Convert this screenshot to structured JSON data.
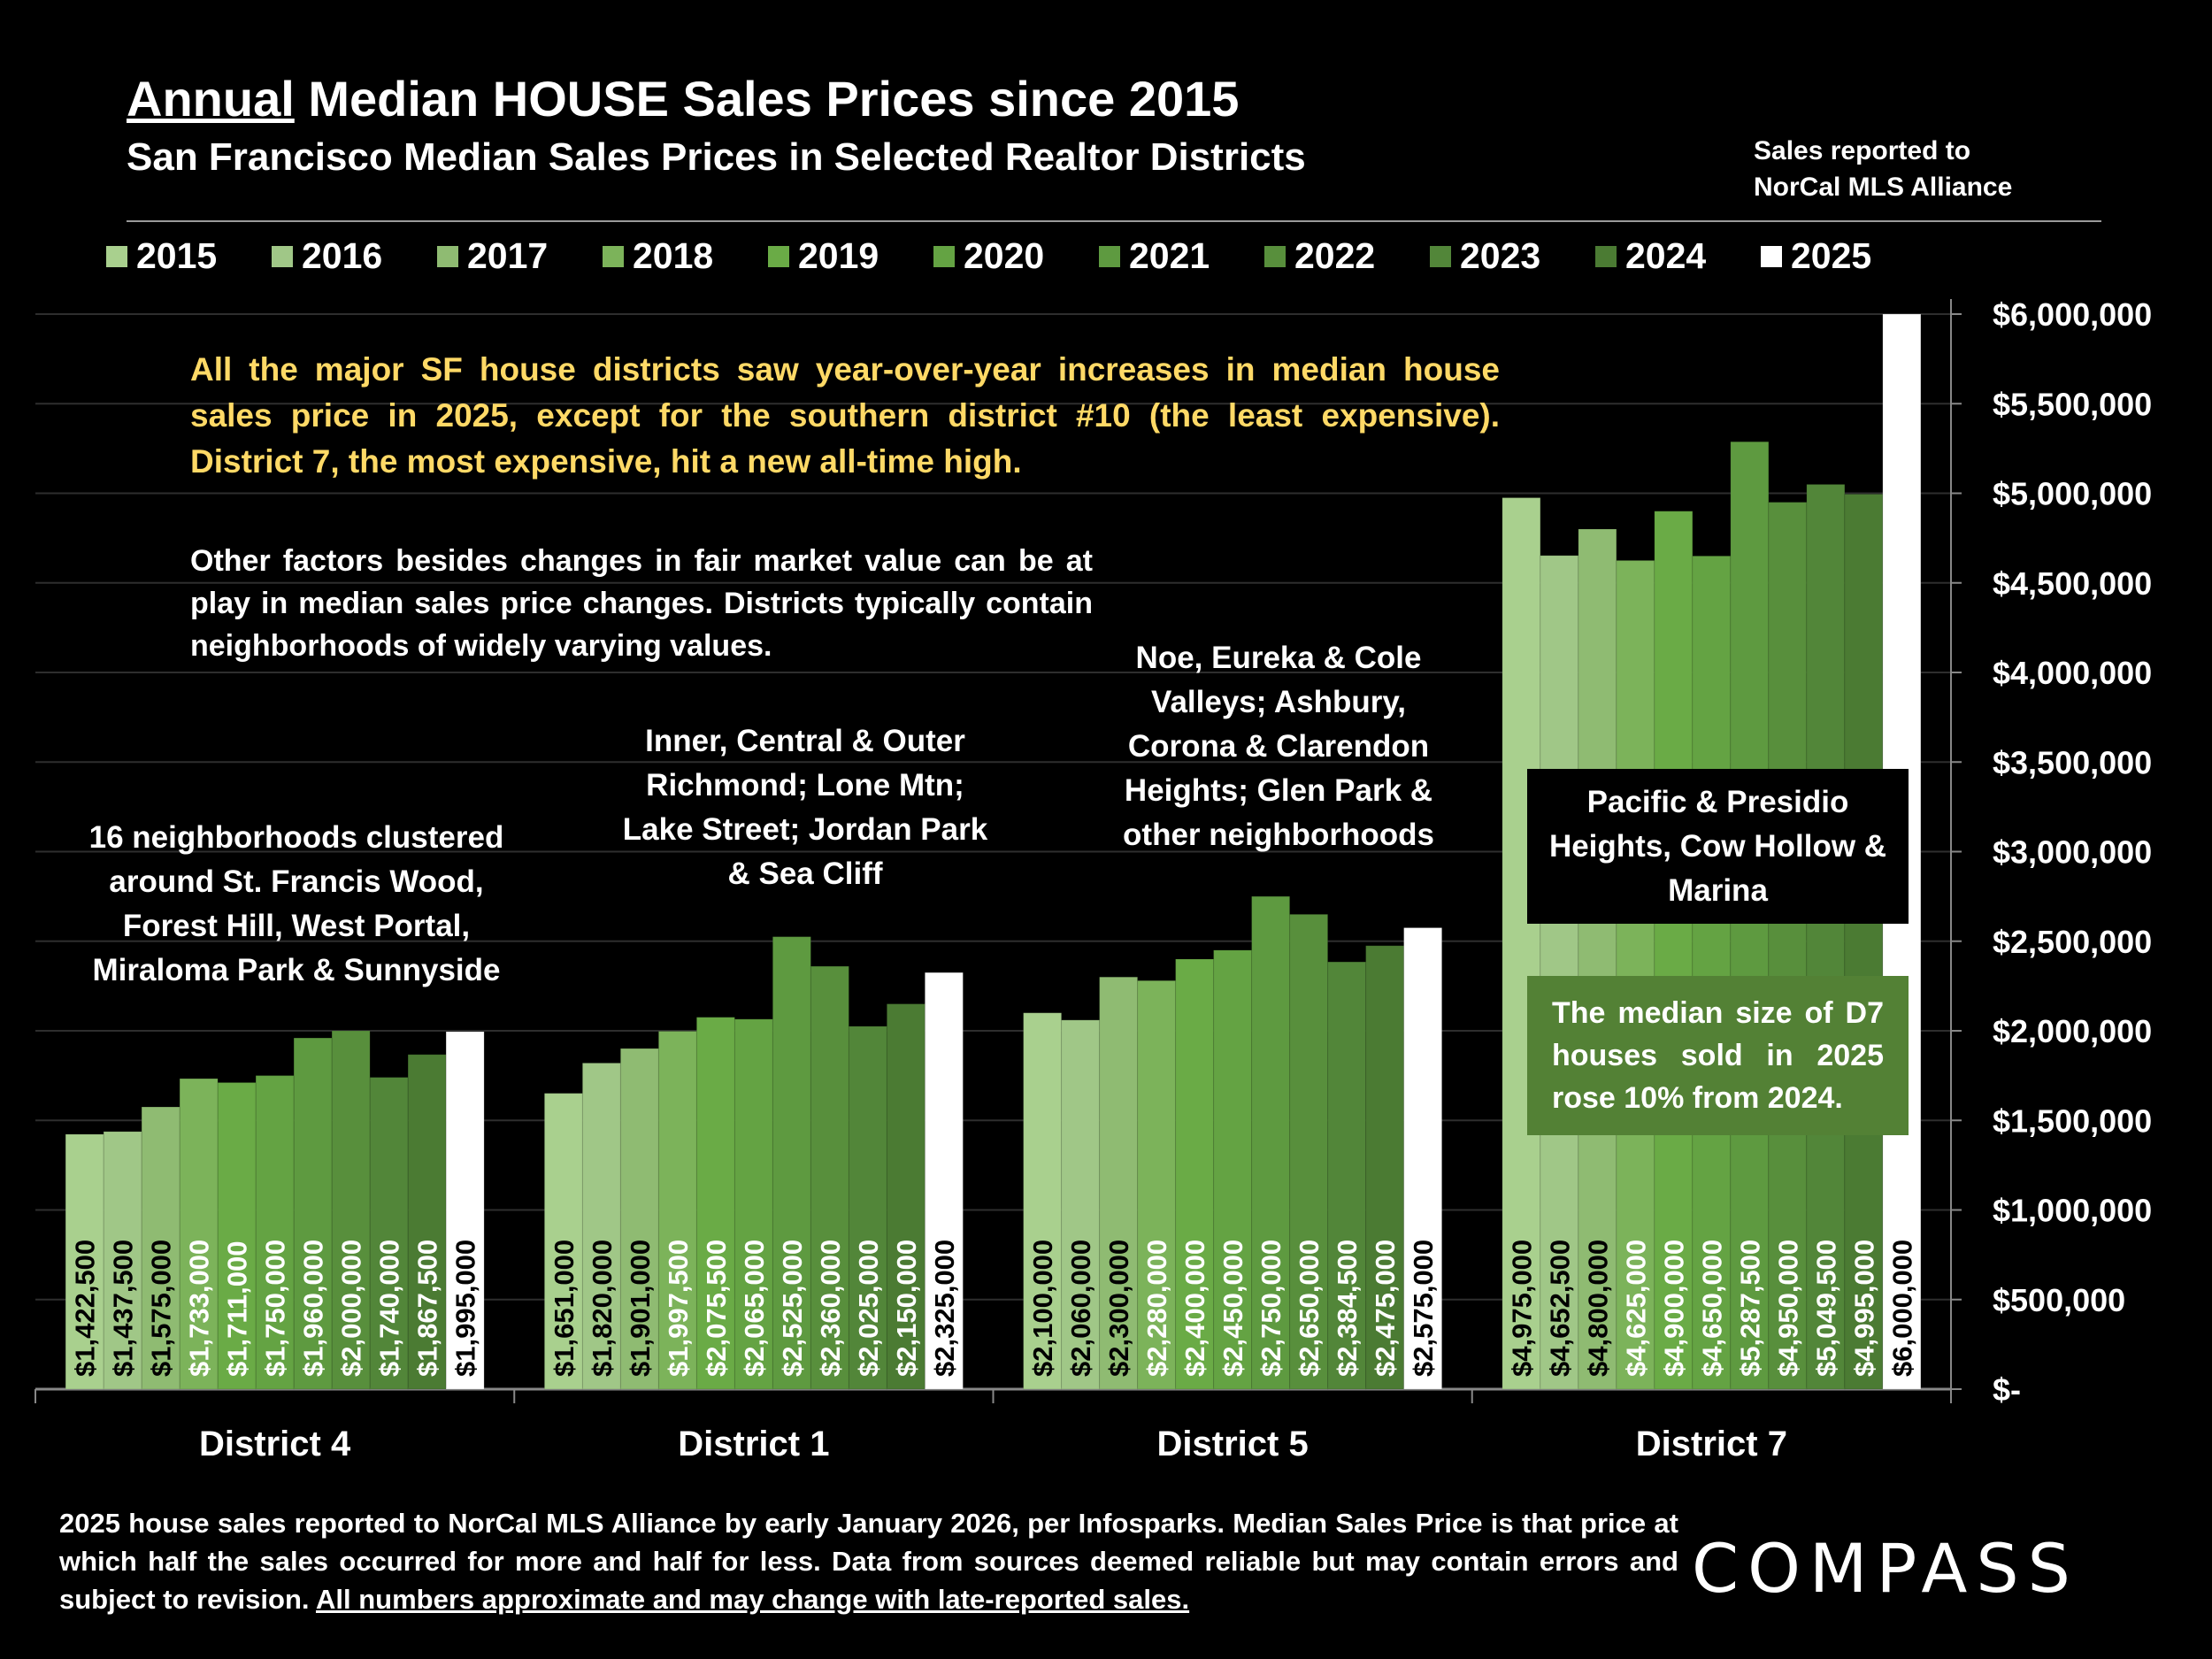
{
  "header": {
    "title_underlined": "Annual",
    "title_rest": " Median HOUSE Sales Prices since 2015",
    "subtitle": "San Francisco Median Sales Prices in Selected Realtor Districts",
    "source_note_line1": "Sales reported to",
    "source_note_line2": "NorCal MLS Alliance"
  },
  "annotations": {
    "callout": "All the major SF house districts saw year-over-year increases in median house sales price in 2025, except for the southern district #10 (the least expensive). District 7, the most expensive, hit a new all-time high.",
    "note": "Other factors besides changes in fair market value can be at play in median sales price changes. Districts typically contain neighborhoods of widely varying values.",
    "district4": "16 neighborhoods clustered around St. Francis Wood, Forest Hill, West Portal, Miraloma Park & Sunnyside",
    "district1": "Inner, Central & Outer Richmond; Lone Mtn; Lake Street; Jordan Park & Sea Cliff",
    "district5": "Noe, Eureka & Cole Valleys; Ashbury, Corona & Clarendon Heights; Glen Park & other neighborhoods",
    "district7": "Pacific & Presidio Heights, Cow Hollow & Marina",
    "d7_size": "The median size of D7 houses sold in 2025 rose 10% from 2024."
  },
  "footer": {
    "text": "2025 house sales reported to NorCal MLS Alliance by early January 2026, per Infosparks. Median Sales Price is that price at which half the sales occurred for more and half for less. Data from sources deemed reliable but may contain errors and subject to revision. ",
    "underlined": "All numbers approximate and may change with late-reported sales.",
    "logo": "COMPASS"
  },
  "chart_data": {
    "type": "bar",
    "title": "Annual Median HOUSE Sales Prices since 2015",
    "categories": [
      "District 4",
      "District 1",
      "District 5",
      "District 7"
    ],
    "series": [
      {
        "name": "2015",
        "color": "#a9d08e",
        "values": [
          1422500,
          1651000,
          2100000,
          4975000
        ],
        "labels": [
          "$1,422,500",
          "$1,651,000",
          "$2,100,000",
          "$4,975,000"
        ]
      },
      {
        "name": "2016",
        "color": "#a0c787",
        "values": [
          1437500,
          1820000,
          2060000,
          4652500
        ],
        "labels": [
          "$1,437,500",
          "$1,820,000",
          "$2,060,000",
          "$4,652,500"
        ]
      },
      {
        "name": "2017",
        "color": "#8fbb72",
        "values": [
          1575000,
          1901000,
          2300000,
          4800000
        ],
        "labels": [
          "$1,575,000",
          "$1,901,000",
          "$2,300,000",
          "$4,800,000"
        ]
      },
      {
        "name": "2018",
        "color": "#7cb35a",
        "values": [
          1733000,
          1997500,
          2280000,
          4625000
        ],
        "labels": [
          "$1,733,000",
          "$1,997,500",
          "$2,280,000",
          "$4,625,000"
        ]
      },
      {
        "name": "2019",
        "color": "#6aab46",
        "values": [
          1711000,
          2075500,
          2400000,
          4900000
        ],
        "labels": [
          "$1,711,000",
          "$2,075,500",
          "$2,400,000",
          "$4,900,000"
        ]
      },
      {
        "name": "2020",
        "color": "#64a343",
        "values": [
          1750000,
          2065000,
          2450000,
          4650000
        ],
        "labels": [
          "$1,750,000",
          "$2,065,000",
          "$2,450,000",
          "$4,650,000"
        ]
      },
      {
        "name": "2021",
        "color": "#5e9a40",
        "values": [
          1960000,
          2525000,
          2750000,
          5287500
        ],
        "labels": [
          "$1,960,000",
          "$2,525,000",
          "$2,750,000",
          "$5,287,500"
        ]
      },
      {
        "name": "2022",
        "color": "#588f3c",
        "values": [
          2000000,
          2360000,
          2650000,
          4950000
        ],
        "labels": [
          "$2,000,000",
          "$2,360,000",
          "$2,650,000",
          "$4,950,000"
        ]
      },
      {
        "name": "2023",
        "color": "#528639",
        "values": [
          1740000,
          2025000,
          2384500,
          5049500
        ],
        "labels": [
          "$1,740,000",
          "$2,025,000",
          "$2,384,500",
          "$5,049,500"
        ]
      },
      {
        "name": "2024",
        "color": "#4b7b33",
        "values": [
          1867500,
          2150000,
          2475000,
          4995000
        ],
        "labels": [
          "$1,867,500",
          "$2,150,000",
          "$2,475,000",
          "$4,995,000"
        ]
      },
      {
        "name": "2025",
        "color": "#ffffff",
        "values": [
          1995000,
          2325000,
          2575000,
          6000000
        ],
        "labels": [
          "$1,995,000",
          "$2,325,000",
          "$2,575,000",
          "$6,000,000"
        ]
      }
    ],
    "ylim": [
      0,
      6000000
    ],
    "yaxis_position": "right",
    "yticks": [
      0,
      500000,
      1000000,
      1500000,
      2000000,
      2500000,
      3000000,
      3500000,
      4000000,
      4500000,
      5000000,
      5500000,
      6000000
    ],
    "ytick_labels": [
      "$-",
      "$500,000",
      "$1,000,000",
      "$1,500,000",
      "$2,000,000",
      "$2,500,000",
      "$3,000,000",
      "$3,500,000",
      "$4,000,000",
      "$4,500,000",
      "$5,000,000",
      "$5,500,000",
      "$6,000,000"
    ],
    "grid": true,
    "legend": "top",
    "xlabel": "",
    "ylabel": ""
  }
}
